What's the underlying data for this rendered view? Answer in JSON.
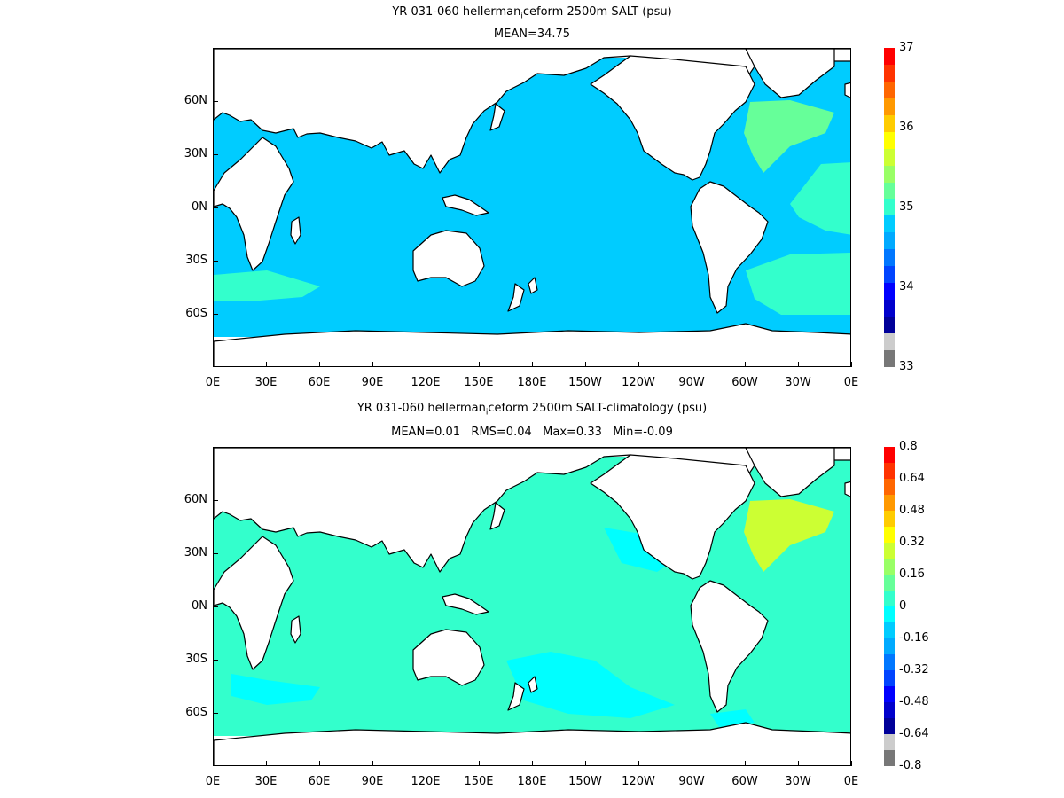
{
  "panels": [
    {
      "title": "YR 031-060 hellerman",
      "title_sub": "i",
      "title_rest": "ceform 2500m SALT (psu)",
      "subtitle": "MEAN=34.75",
      "colorbar": {
        "labels": [
          "37",
          "36",
          "35",
          "34",
          "33"
        ],
        "colors": [
          "#ff0000",
          "#ff3300",
          "#ff6600",
          "#ff9900",
          "#ffcc00",
          "#ffff00",
          "#ccff33",
          "#99ff66",
          "#66ff99",
          "#33ffcc",
          "#00ccff",
          "#00aaff",
          "#0077ff",
          "#0044ff",
          "#0000ff",
          "#0000cc",
          "#000099",
          "#cccccc",
          "#777777"
        ],
        "ocean_color": "#00ccff",
        "ocean_alt_color": "#33ffcc",
        "patch_color": "#66ff99"
      }
    },
    {
      "title": "YR 031-060 hellerman",
      "title_sub": "i",
      "title_rest": "ceform 2500m SALT-climatology (psu)",
      "subtitle": "MEAN=0.01   RMS=0.04   Max=0.33   Min=-0.09",
      "colorbar": {
        "labels": [
          "0.8",
          "0.64",
          "0.48",
          "0.32",
          "0.16",
          "0",
          "-0.16",
          "-0.32",
          "-0.48",
          "-0.64",
          "-0.8"
        ],
        "colors": [
          "#ff0000",
          "#ff3300",
          "#ff6600",
          "#ff9900",
          "#ffcc00",
          "#ffff00",
          "#ccff33",
          "#99ff66",
          "#66ff99",
          "#33ffcc",
          "#00ffff",
          "#00ccff",
          "#00aaff",
          "#0077ff",
          "#0044ff",
          "#0000ff",
          "#0000cc",
          "#000099",
          "#cccccc",
          "#777777"
        ],
        "ocean_color": "#33ffcc",
        "ocean_alt_color": "#00ffff",
        "patch_color": "#ccff33"
      }
    }
  ],
  "lat_labels": [
    "60N",
    "30N",
    "0N",
    "30S",
    "60S"
  ],
  "lon_labels": [
    "0E",
    "30E",
    "60E",
    "90E",
    "120E",
    "150E",
    "180E",
    "150W",
    "120W",
    "90W",
    "60W",
    "30W",
    "0E"
  ]
}
